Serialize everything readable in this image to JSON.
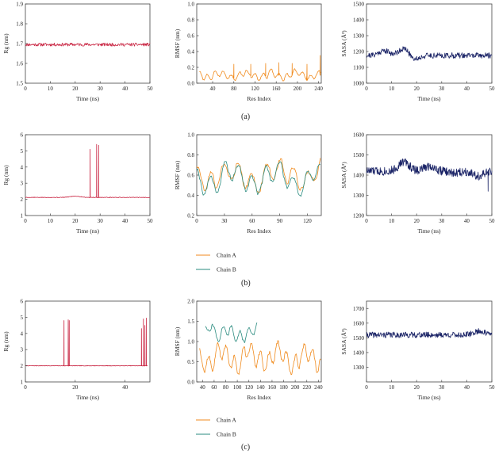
{
  "panel_labels": [
    "(a)",
    "(b)",
    "(c)"
  ],
  "chart_data": [
    {
      "id": "a-rg",
      "type": "line",
      "panel": "(a)",
      "title": "",
      "xlabel": "Time (ns)",
      "ylabel": "Rg (nm)",
      "xlim": [
        0,
        50
      ],
      "ylim": [
        1.5,
        1.9
      ],
      "xticks": [
        0,
        10,
        20,
        30,
        40,
        50
      ],
      "yticks": [
        1.5,
        1.6,
        1.7,
        1.8,
        1.9
      ],
      "series": [
        {
          "name": "Rg",
          "color": "#c8213f",
          "gen": {
            "kind": "noise",
            "n": 260,
            "base": 1.695,
            "amp": 0.008,
            "x0": 0,
            "x1": 50,
            "seed": 11
          }
        }
      ]
    },
    {
      "id": "a-rmsf",
      "type": "line",
      "panel": "(a)",
      "title": "",
      "xlabel": "Res Index",
      "ylabel": "RMSF (nm)",
      "xlim": [
        10,
        245
      ],
      "ylim": [
        0,
        1.0
      ],
      "xticks": [
        40,
        80,
        120,
        160,
        200,
        240
      ],
      "yticks": [
        0,
        0.2,
        0.4,
        0.6,
        0.8,
        1.0
      ],
      "series": [
        {
          "name": "RMSF",
          "color": "#f08a1c",
          "gen": {
            "kind": "wave",
            "n": 230,
            "base": 0.1,
            "amp": 0.06,
            "spikes": [
              [
                80,
                0.24
              ],
              [
                112,
                0.24
              ],
              [
                140,
                0.25
              ],
              [
                165,
                0.26
              ],
              [
                190,
                0.25
              ],
              [
                218,
                0.24
              ],
              [
                243,
                0.35
              ]
            ],
            "x0": 15,
            "x1": 244,
            "seed": 3
          }
        }
      ]
    },
    {
      "id": "a-sasa",
      "type": "line",
      "panel": "(a)",
      "title": "",
      "xlabel": "Time (ns)",
      "ylabel": "SASA (Å²)",
      "xlim": [
        0,
        50
      ],
      "ylim": [
        1000,
        1500
      ],
      "xticks": [
        0,
        10,
        20,
        30,
        40,
        50
      ],
      "yticks": [
        1000,
        1100,
        1200,
        1300,
        1400,
        1500
      ],
      "series": [
        {
          "name": "SASA",
          "color": "#1a2366",
          "gen": {
            "kind": "noise",
            "n": 300,
            "base": 1175,
            "amp": 18,
            "bumps": [
              [
                7,
                30
              ],
              [
                15,
                45
              ],
              [
                19,
                -25
              ]
            ],
            "x0": 0,
            "x1": 50,
            "seed": 21
          }
        }
      ]
    },
    {
      "id": "b-rg",
      "type": "line",
      "panel": "(b)",
      "title": "",
      "xlabel": "Time (ns)",
      "ylabel": "Rg (nm)",
      "xlim": [
        0,
        50
      ],
      "ylim": [
        1,
        6
      ],
      "xticks": [
        0,
        10,
        20,
        30,
        40,
        50
      ],
      "yticks": [
        1,
        2,
        3,
        4,
        5,
        6
      ],
      "series": [
        {
          "name": "Rg",
          "color": "#c8213f",
          "gen": {
            "kind": "noise",
            "n": 260,
            "base": 2.12,
            "amp": 0.02,
            "bumps": [
              [
                20,
                0.08
              ]
            ],
            "spikes": [
              [
                26,
                5.1
              ],
              [
                28.6,
                5.4
              ],
              [
                29.4,
                5.35
              ]
            ],
            "x0": 0,
            "x1": 50,
            "seed": 5
          }
        }
      ]
    },
    {
      "id": "b-rmsf",
      "type": "line",
      "panel": "(b)",
      "title": "",
      "xlabel": "Res Index",
      "ylabel": "RMSF (nm)",
      "xlim": [
        0,
        135
      ],
      "ylim": [
        0.2,
        1.0
      ],
      "xticks": [
        0,
        30,
        60,
        90,
        120
      ],
      "yticks": [
        0.2,
        0.4,
        0.6,
        0.8,
        1.0
      ],
      "legend": [
        "Chain A",
        "Chain B"
      ],
      "series": [
        {
          "name": "Chain A",
          "color": "#f08a1c",
          "gen": {
            "kind": "wave",
            "n": 135,
            "base": 0.6,
            "amp": 0.16,
            "x0": 0,
            "x1": 134,
            "seed": 8
          }
        },
        {
          "name": "Chain B",
          "color": "#2a8b7f",
          "gen": {
            "kind": "wave",
            "n": 135,
            "base": 0.57,
            "amp": 0.15,
            "x0": 0,
            "x1": 134,
            "seed": 19
          }
        }
      ]
    },
    {
      "id": "b-sasa",
      "type": "line",
      "panel": "(b)",
      "title": "",
      "xlabel": "Time (ns)",
      "ylabel": "SASA (Å²)",
      "xlim": [
        0,
        50
      ],
      "ylim": [
        1200,
        1600
      ],
      "xticks": [
        0,
        10,
        20,
        30,
        40,
        50
      ],
      "yticks": [
        1200,
        1300,
        1400,
        1500,
        1600
      ],
      "series": [
        {
          "name": "SASA",
          "color": "#1a2366",
          "gen": {
            "kind": "noise",
            "n": 320,
            "base": 1420,
            "amp": 22,
            "bumps": [
              [
                15,
                45
              ],
              [
                25,
                25
              ],
              [
                35,
                -10
              ],
              [
                45,
                -25
              ]
            ],
            "spikes": [
              [
                48.5,
                1320
              ]
            ],
            "x0": 0,
            "x1": 50,
            "seed": 33
          }
        }
      ]
    },
    {
      "id": "c-rg",
      "type": "line",
      "panel": "(c)",
      "title": "",
      "xlabel": "Time (ns)",
      "ylabel": "Rg (nm)",
      "xlim": [
        0,
        50
      ],
      "ylim": [
        1,
        6
      ],
      "xticks": [
        0,
        20,
        40
      ],
      "yticks": [
        1,
        2,
        3,
        4,
        5,
        6
      ],
      "series": [
        {
          "name": "Rg",
          "color": "#c8213f",
          "gen": {
            "kind": "noise",
            "n": 280,
            "base": 2.0,
            "amp": 0.015,
            "spikes": [
              [
                15.5,
                4.8
              ],
              [
                17.2,
                4.85
              ],
              [
                17.6,
                4.8
              ],
              [
                46.6,
                4.3
              ],
              [
                47.4,
                4.9
              ],
              [
                48,
                4.5
              ],
              [
                48.6,
                4.95
              ]
            ],
            "x0": 0,
            "x1": 49,
            "seed": 7
          }
        }
      ]
    },
    {
      "id": "c-rmsf",
      "type": "line",
      "panel": "(c)",
      "title": "",
      "xlabel": "Res Index",
      "ylabel": "RMSF (nm)",
      "xlim": [
        30,
        245
      ],
      "ylim": [
        0,
        2.0
      ],
      "xticks": [
        40,
        60,
        80,
        100,
        120,
        140,
        160,
        180,
        200,
        220,
        240
      ],
      "yticks": [
        0,
        0.5,
        1.0,
        1.5,
        2.0
      ],
      "legend": [
        "Chain A",
        "Chain B"
      ],
      "series": [
        {
          "name": "Chain A",
          "color": "#f08a1c",
          "gen": {
            "kind": "wave",
            "n": 210,
            "base": 0.6,
            "amp": 0.35,
            "x0": 35,
            "x1": 244,
            "seed": 12
          }
        },
        {
          "name": "Chain B",
          "color": "#2a8b7f",
          "gen": {
            "kind": "wave",
            "n": 90,
            "base": 1.2,
            "amp": 0.22,
            "bumps": [
              [
                55,
                0.35
              ]
            ],
            "x0": 45,
            "x1": 134,
            "seed": 27
          }
        }
      ]
    },
    {
      "id": "c-sasa",
      "type": "line",
      "panel": "(c)",
      "title": "",
      "xlabel": "Time (ns)",
      "ylabel": "SASA (Å²)",
      "xlim": [
        0,
        50
      ],
      "ylim": [
        1200,
        1750
      ],
      "xticks": [
        0,
        10,
        20,
        30,
        40,
        50
      ],
      "yticks": [
        1300,
        1400,
        1500,
        1600,
        1700
      ],
      "series": [
        {
          "name": "SASA",
          "color": "#1a2366",
          "gen": {
            "kind": "noise",
            "n": 320,
            "base": 1520,
            "amp": 20,
            "bumps": [
              [
                45,
                25
              ]
            ],
            "x0": 0,
            "x1": 50,
            "seed": 41
          }
        }
      ]
    }
  ]
}
